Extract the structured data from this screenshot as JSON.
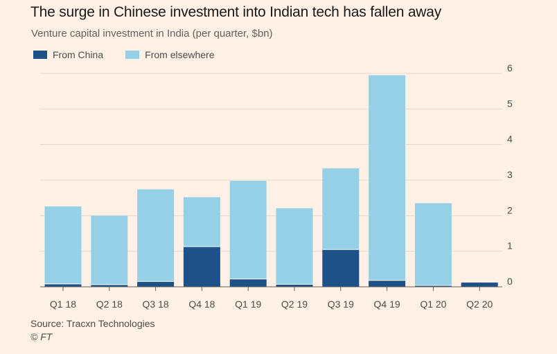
{
  "title": "The surge in Chinese investment into Indian tech has fallen away",
  "subtitle": "Venture capital investment in India (per quarter, $bn)",
  "source": "Source: Tracxn Technologies",
  "copyright": "© FT",
  "colors": {
    "background": "#fff1e5",
    "china": "#1f5189",
    "elsewhere": "#96d0e6",
    "grid": "#e3d7cc"
  },
  "chart_data": {
    "type": "bar",
    "stacked": true,
    "categories": [
      "Q1 18",
      "Q2 18",
      "Q3 18",
      "Q4 18",
      "Q1 19",
      "Q2 19",
      "Q3 19",
      "Q4 19",
      "Q1 20",
      "Q2 20"
    ],
    "series": [
      {
        "name": "From China",
        "color": "#1f5189",
        "values": [
          0.08,
          0.06,
          0.15,
          1.13,
          0.22,
          0.07,
          1.05,
          0.18,
          0.04,
          0.12
        ]
      },
      {
        "name": "From elsewhere",
        "color": "#96d0e6",
        "values": [
          2.18,
          1.94,
          2.59,
          1.39,
          2.76,
          2.14,
          2.28,
          5.77,
          2.31,
          0.0
        ]
      }
    ],
    "y_ticks": [
      0,
      1,
      2,
      3,
      4,
      5,
      6
    ],
    "ylim": [
      0,
      6
    ],
    "yaxis_side": "right",
    "legend_position": "top-left",
    "grid": true
  }
}
